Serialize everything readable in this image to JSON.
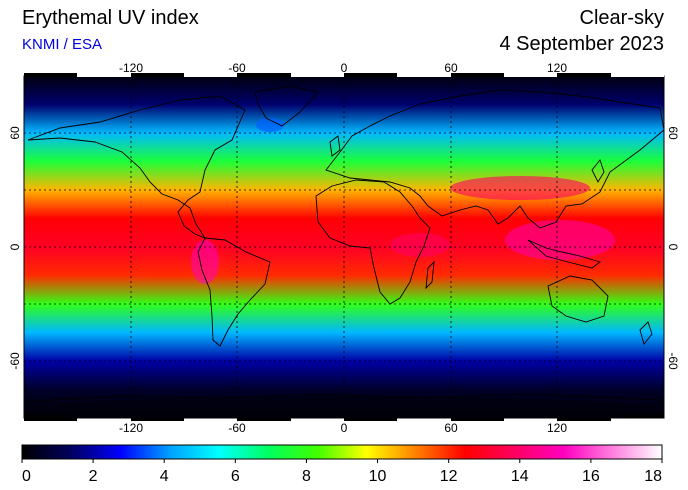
{
  "header": {
    "title": "Erythemal UV index",
    "source": "KNMI / ESA",
    "mode": "Clear-sky",
    "date": "4 September 2023"
  },
  "map": {
    "projection": "plate-carree",
    "lon_range": [
      -180,
      180
    ],
    "lat_range": [
      -90,
      90
    ],
    "gridlines": "dotted",
    "lon_tick_labels": [
      "-120",
      "-60",
      "0",
      "60",
      "120"
    ],
    "lat_tick_labels": [
      "60",
      "0",
      "-60"
    ],
    "uv_by_latitude_band": [
      {
        "lat": 90,
        "uv": 0.2
      },
      {
        "lat": 75,
        "uv": 1.5
      },
      {
        "lat": 60,
        "uv": 4.5
      },
      {
        "lat": 45,
        "uv": 7.5
      },
      {
        "lat": 30,
        "uv": 10.5
      },
      {
        "lat": 15,
        "uv": 12.5
      },
      {
        "lat": 0,
        "uv": 13.0
      },
      {
        "lat": -15,
        "uv": 12.0
      },
      {
        "lat": -30,
        "uv": 8.0
      },
      {
        "lat": -45,
        "uv": 4.5
      },
      {
        "lat": -60,
        "uv": 2.0
      },
      {
        "lat": -75,
        "uv": 0.6
      },
      {
        "lat": -90,
        "uv": 0.0
      }
    ]
  },
  "colorbar": {
    "min": 0,
    "max": 18,
    "tick_labels": [
      "0",
      "2",
      "4",
      "6",
      "8",
      "10",
      "12",
      "14",
      "16",
      "18"
    ],
    "colors": [
      "#000000",
      "#000060",
      "#0000ff",
      "#00a0ff",
      "#00ffff",
      "#00ff60",
      "#40ff00",
      "#ffff00",
      "#ff8000",
      "#ff0000",
      "#ff0060",
      "#ff00c0",
      "#ff80e0",
      "#ffffff"
    ]
  }
}
